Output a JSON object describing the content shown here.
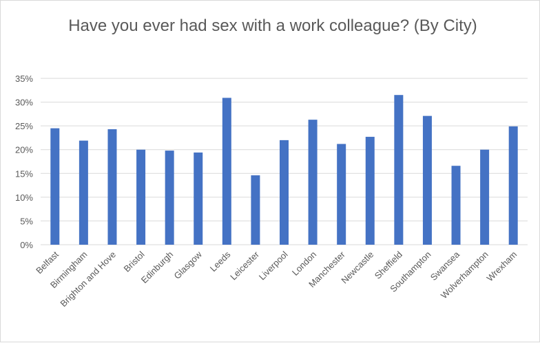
{
  "chart_data": {
    "type": "bar",
    "title": "Have you ever had sex with a work colleague? (By City)",
    "xlabel": "",
    "ylabel": "",
    "categories": [
      "Belfast",
      "Birmingham",
      "Brighton and Hove",
      "Bristol",
      "Edinburgh",
      "Glasgow",
      "Leeds",
      "Leicester",
      "Liverpool",
      "London",
      "Manchester",
      "Newcastle",
      "Sheffield",
      "Southampton",
      "Swansea",
      "Wolverhampton",
      "Wrexham"
    ],
    "values": [
      24.5,
      21.9,
      24.3,
      20.0,
      19.8,
      19.4,
      30.9,
      14.6,
      22.0,
      26.3,
      21.2,
      22.7,
      31.5,
      27.1,
      16.6,
      20.0,
      24.9
    ],
    "ylim": [
      0,
      35
    ],
    "ytick_values": [
      0,
      5,
      10,
      15,
      20,
      25,
      30,
      35
    ],
    "ytick_labels": [
      "0%",
      "5%",
      "10%",
      "15%",
      "20%",
      "25%",
      "30%",
      "35%"
    ],
    "grid": true,
    "legend": "none",
    "bar_color": "#4472c4",
    "grid_color": "#d9d9d9",
    "text_color": "#595959"
  }
}
